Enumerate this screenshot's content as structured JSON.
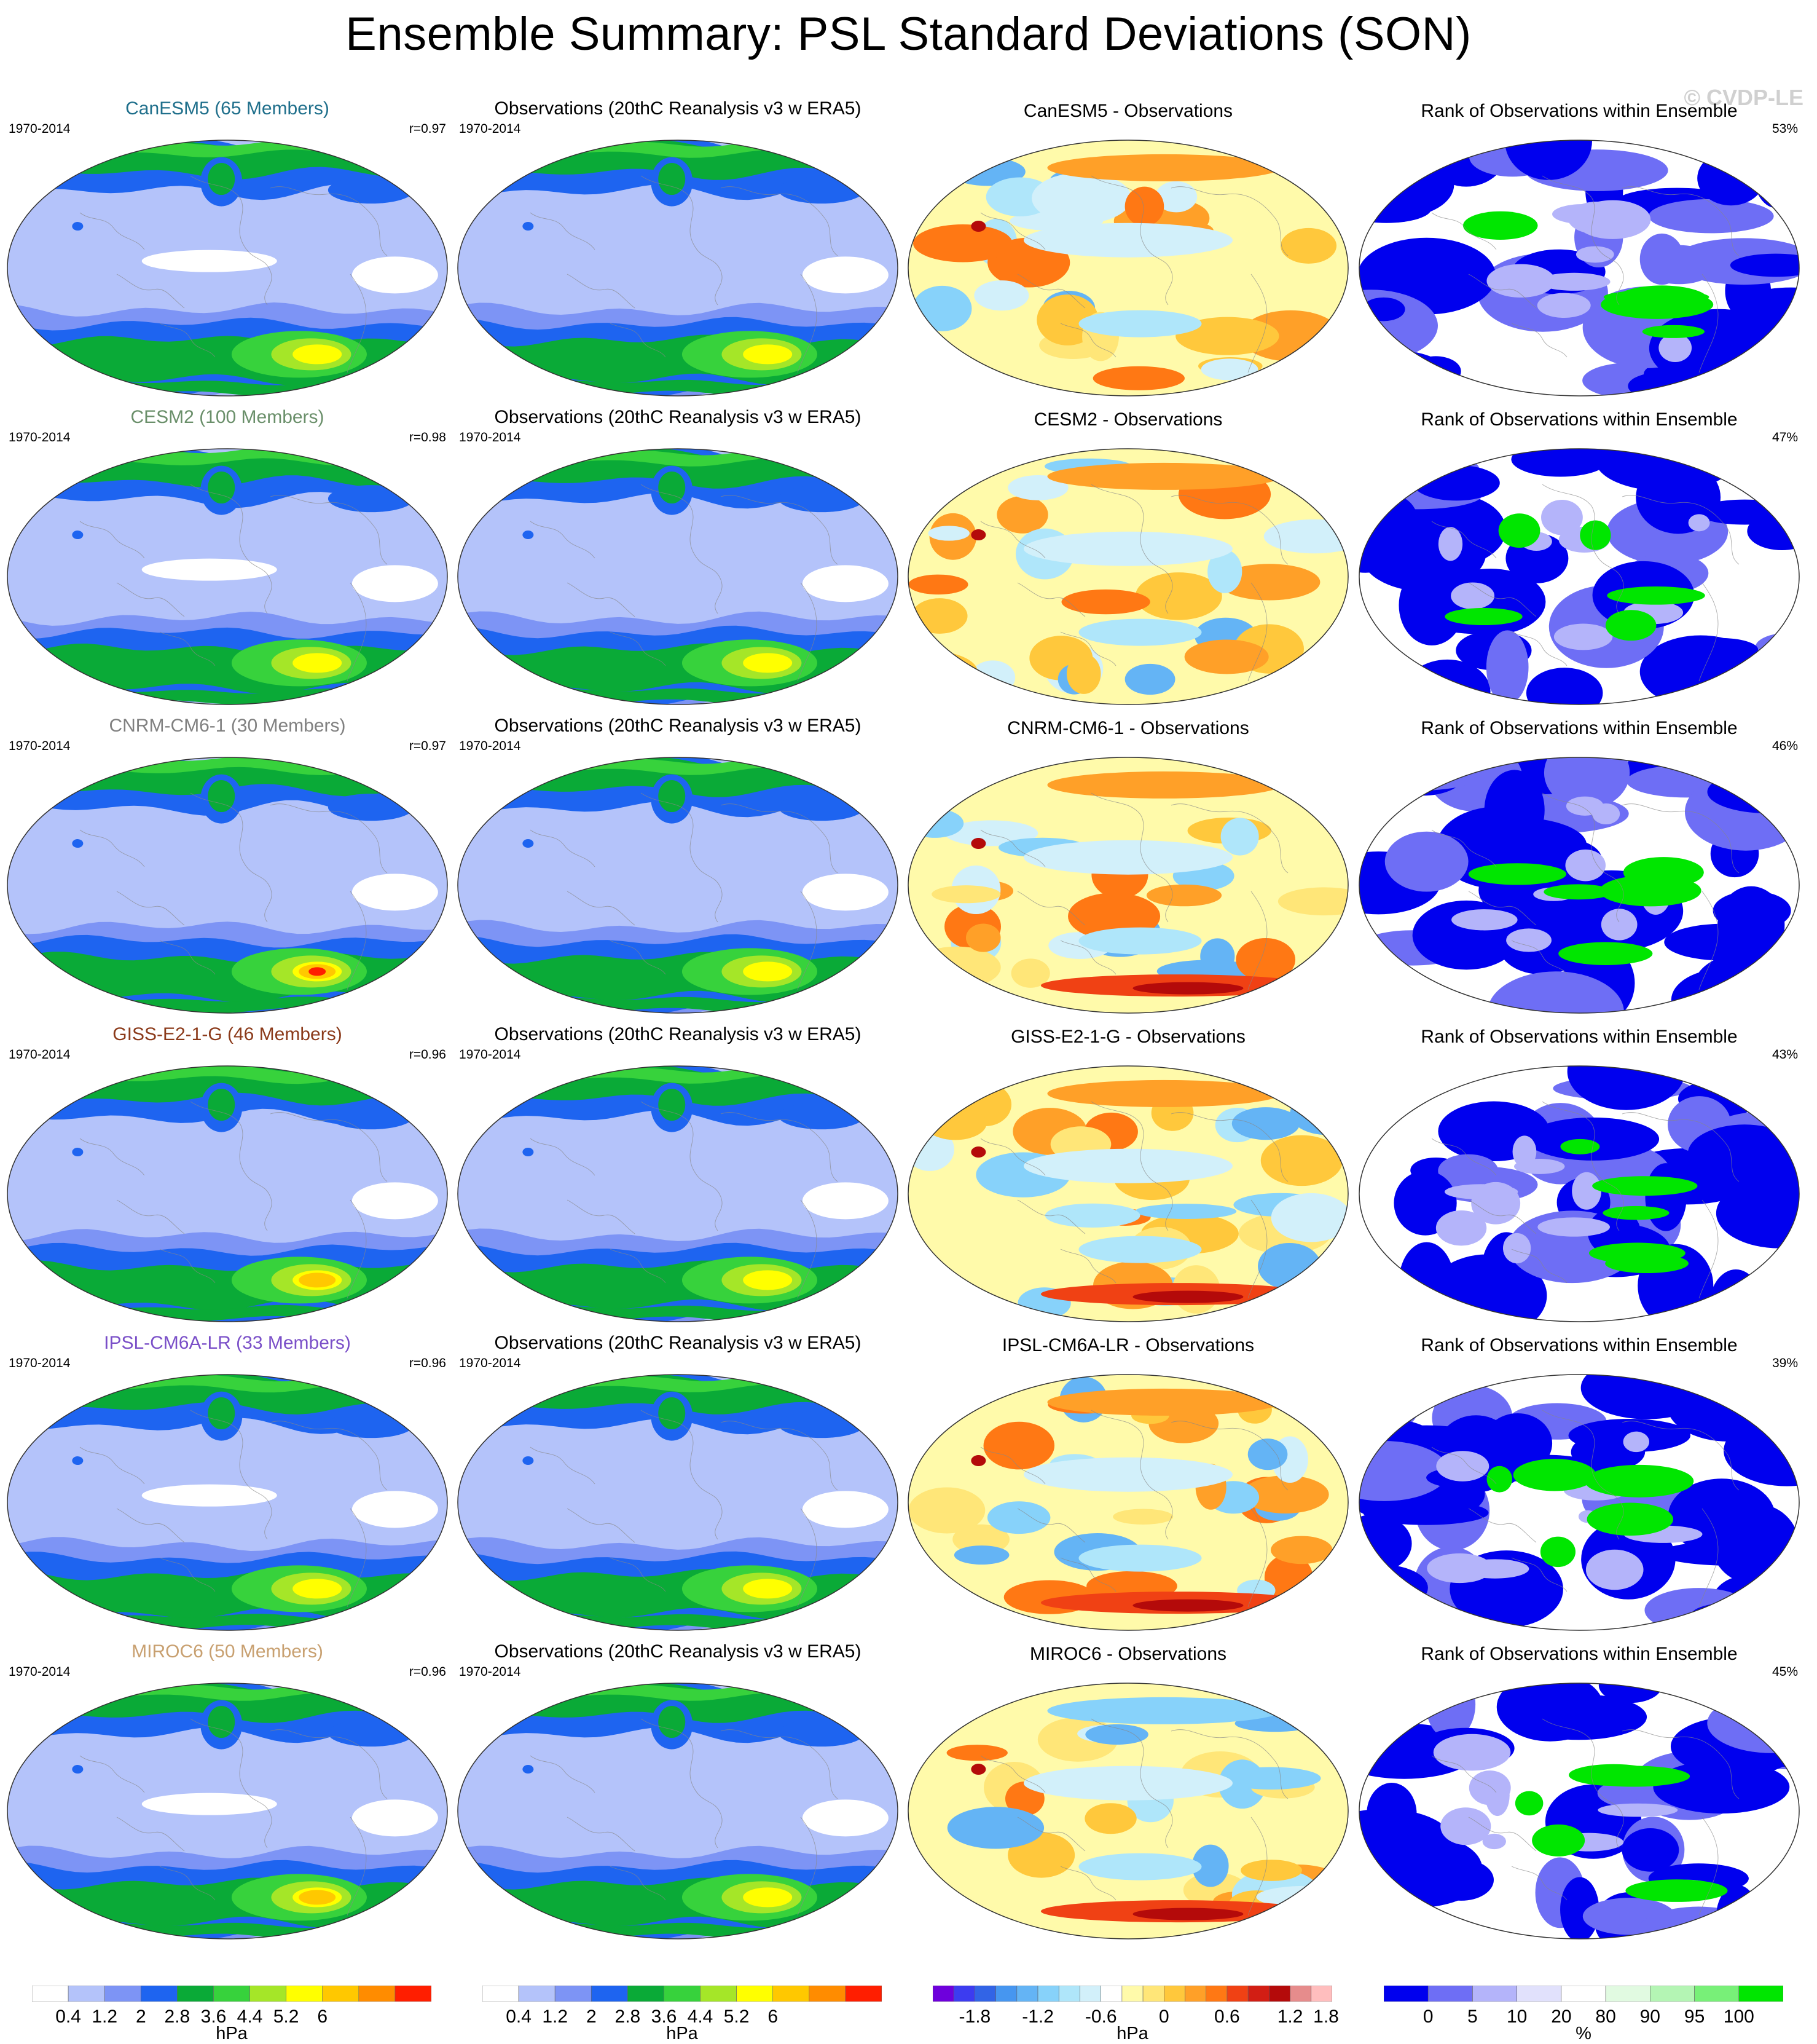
{
  "title": "Ensemble Summary: PSL Standard Deviations (SON)",
  "watermark": "© CVDP-LE",
  "period": "1970-2014",
  "obs_title": "Observations (20thC Reanalysis v3 w ERA5)",
  "rank_title": "Rank of Observations within Ensemble",
  "rows": [
    {
      "model": "CanESM5",
      "members_title": "CanESM5 (65 Members)",
      "title_color": "#1f6f8b",
      "r": "r=0.97",
      "diff_title": "CanESM5 - Observations",
      "rank_pct": "53%"
    },
    {
      "model": "CESM2",
      "members_title": "CESM2 (100 Members)",
      "title_color": "#6a8f6a",
      "r": "r=0.98",
      "diff_title": "CESM2 - Observations",
      "rank_pct": "47%"
    },
    {
      "model": "CNRM-CM6-1",
      "members_title": "CNRM-CM6-1 (30 Members)",
      "title_color": "#808080",
      "r": "r=0.97",
      "diff_title": "CNRM-CM6-1 - Observations",
      "rank_pct": "46%"
    },
    {
      "model": "GISS-E2-1-G",
      "members_title": "GISS-E2-1-G (46 Members)",
      "title_color": "#8b3a1a",
      "r": "r=0.96",
      "diff_title": "GISS-E2-1-G - Observations",
      "rank_pct": "43%"
    },
    {
      "model": "IPSL-CM6A-LR",
      "members_title": "IPSL-CM6A-LR (33 Members)",
      "title_color": "#7a4fc8",
      "r": "r=0.96",
      "diff_title": "IPSL-CM6A-LR - Observations",
      "rank_pct": "39%"
    },
    {
      "model": "MIROC6",
      "members_title": "MIROC6 (50 Members)",
      "title_color": "#c8a070",
      "r": "r=0.96",
      "diff_title": "MIROC6 - Observations",
      "rank_pct": "45%"
    }
  ],
  "chart_data": [
    {
      "type": "colorbar",
      "label": "hPa",
      "role": "model and observed PSL standard deviation",
      "tick_labels": [
        "0.4",
        "1.2",
        "2",
        "2.8",
        "3.6",
        "4.4",
        "5.2",
        "6"
      ],
      "colors": [
        "#ffffff",
        "#b4c3fa",
        "#7d94f5",
        "#1e64f0",
        "#0aaa37",
        "#37d23c",
        "#a5e628",
        "#ffff00",
        "#ffc800",
        "#ff8c00",
        "#ff1e00"
      ]
    },
    {
      "type": "colorbar",
      "label": "hPa",
      "role": "model minus observations",
      "tick_labels": [
        "-1.8",
        "-1.2",
        "-0.6",
        "0",
        "0.6",
        "1.2",
        "1.8"
      ],
      "colors": [
        "#6e00dc",
        "#3c3cf0",
        "#3264e6",
        "#4696f0",
        "#64b4f5",
        "#87d2fa",
        "#afe6fa",
        "#d2f0fa",
        "#ffffff",
        "#fffaaa",
        "#ffe678",
        "#ffc83c",
        "#ffa028",
        "#ff7814",
        "#f04114",
        "#d21e14",
        "#b40a0a",
        "#e68c8c",
        "#ffbebe"
      ]
    },
    {
      "type": "colorbar",
      "label": "%",
      "role": "rank of observations within ensemble",
      "tick_labels": [
        "0",
        "5",
        "10",
        "20",
        "80",
        "90",
        "95",
        "100"
      ],
      "colors": [
        "#0000ee",
        "#6e6ef5",
        "#b4b4fa",
        "#e1e1fc",
        "#ffffff",
        "#e1fae1",
        "#b4f5b4",
        "#78f078",
        "#00e600"
      ]
    }
  ]
}
